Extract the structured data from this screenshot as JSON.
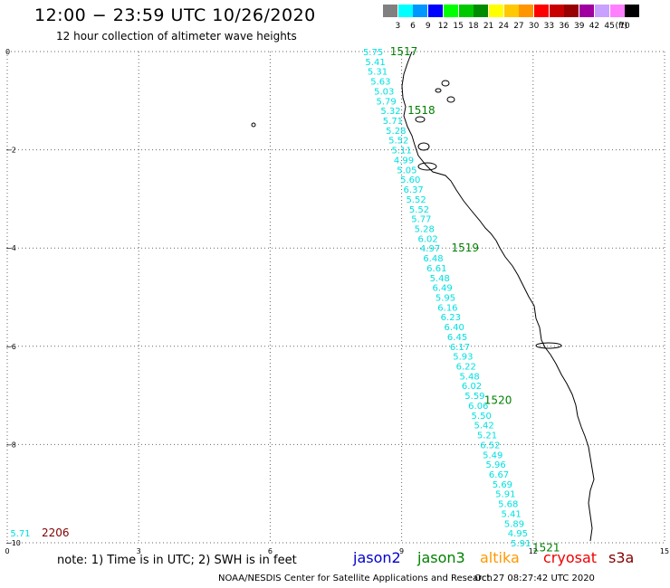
{
  "header": {
    "title": "12:00 − 23:59 UTC 10/26/2020",
    "subtitle": "12 hour collection of altimeter wave heights"
  },
  "color_scale": {
    "unit": "(ft)",
    "bins": [
      {
        "label": "3",
        "color": "#808080"
      },
      {
        "label": "6",
        "color": "#00ffff"
      },
      {
        "label": "9",
        "color": "#0096ff"
      },
      {
        "label": "12",
        "color": "#0000ff"
      },
      {
        "label": "15",
        "color": "#00ff00"
      },
      {
        "label": "18",
        "color": "#00c800"
      },
      {
        "label": "21",
        "color": "#008c00"
      },
      {
        "label": "24",
        "color": "#ffff00"
      },
      {
        "label": "27",
        "color": "#ffc800"
      },
      {
        "label": "30",
        "color": "#ff9600"
      },
      {
        "label": "33",
        "color": "#ff0000"
      },
      {
        "label": "36",
        "color": "#c80000"
      },
      {
        "label": "39",
        "color": "#960000"
      },
      {
        "label": "42",
        "color": "#a000a0"
      },
      {
        "label": "45",
        "color": "#c8a0ff"
      },
      {
        "label": "70",
        "color": "#ff80ff"
      },
      {
        "label": "",
        "color": "#000000"
      }
    ]
  },
  "map": {
    "x_ticks": [
      "0",
      "3",
      "6",
      "9",
      "12",
      "15"
    ],
    "y_ticks": [
      "0",
      "−2",
      "−4",
      "−6",
      "−8",
      "−10"
    ],
    "x_range": [
      0,
      15
    ],
    "y_range": [
      -10,
      0
    ],
    "grid": true,
    "track_color": "#00e0e0",
    "time_color": "#008000",
    "track_points": [
      {
        "x": 8.35,
        "y": 0.0,
        "v": "5.75"
      },
      {
        "x": 8.4,
        "y": -0.2,
        "v": "5.41"
      },
      {
        "x": 8.45,
        "y": -0.4,
        "v": "5.31"
      },
      {
        "x": 8.52,
        "y": -0.6,
        "v": "5.63"
      },
      {
        "x": 8.6,
        "y": -0.8,
        "v": "5.03"
      },
      {
        "x": 8.65,
        "y": -1.0,
        "v": "5.79"
      },
      {
        "x": 8.75,
        "y": -1.2,
        "v": "5.32"
      },
      {
        "x": 8.8,
        "y": -1.4,
        "v": "5.71"
      },
      {
        "x": 8.87,
        "y": -1.6,
        "v": "5.28"
      },
      {
        "x": 8.93,
        "y": -1.8,
        "v": "5.52"
      },
      {
        "x": 9.0,
        "y": -2.0,
        "v": "5.11"
      },
      {
        "x": 9.05,
        "y": -2.2,
        "v": "4.99"
      },
      {
        "x": 9.12,
        "y": -2.4,
        "v": "5.05"
      },
      {
        "x": 9.2,
        "y": -2.6,
        "v": "5.60"
      },
      {
        "x": 9.27,
        "y": -2.8,
        "v": "6.37"
      },
      {
        "x": 9.33,
        "y": -3.0,
        "v": "5.52"
      },
      {
        "x": 9.4,
        "y": -3.2,
        "v": "5.52"
      },
      {
        "x": 9.45,
        "y": -3.4,
        "v": "5.77"
      },
      {
        "x": 9.52,
        "y": -3.6,
        "v": "5.28"
      },
      {
        "x": 9.6,
        "y": -3.8,
        "v": "6.02"
      },
      {
        "x": 9.65,
        "y": -4.0,
        "v": "4.97"
      },
      {
        "x": 9.72,
        "y": -4.2,
        "v": "6.48"
      },
      {
        "x": 9.8,
        "y": -4.4,
        "v": "6.61"
      },
      {
        "x": 9.87,
        "y": -4.6,
        "v": "5.48"
      },
      {
        "x": 9.93,
        "y": -4.8,
        "v": "6.49"
      },
      {
        "x": 10.0,
        "y": -5.0,
        "v": "5.95"
      },
      {
        "x": 10.05,
        "y": -5.2,
        "v": "6.16"
      },
      {
        "x": 10.12,
        "y": -5.4,
        "v": "6.23"
      },
      {
        "x": 10.2,
        "y": -5.6,
        "v": "6.40"
      },
      {
        "x": 10.27,
        "y": -5.8,
        "v": "6.45"
      },
      {
        "x": 10.33,
        "y": -6.0,
        "v": "6.17"
      },
      {
        "x": 10.4,
        "y": -6.2,
        "v": "5.93"
      },
      {
        "x": 10.47,
        "y": -6.4,
        "v": "6.22"
      },
      {
        "x": 10.55,
        "y": -6.6,
        "v": "5.48"
      },
      {
        "x": 10.6,
        "y": -6.8,
        "v": "6.02"
      },
      {
        "x": 10.67,
        "y": -7.0,
        "v": "5.59"
      },
      {
        "x": 10.75,
        "y": -7.2,
        "v": "6.06"
      },
      {
        "x": 10.82,
        "y": -7.4,
        "v": "5.50"
      },
      {
        "x": 10.88,
        "y": -7.6,
        "v": "5.42"
      },
      {
        "x": 10.95,
        "y": -7.8,
        "v": "5.21"
      },
      {
        "x": 11.02,
        "y": -8.0,
        "v": "6.52"
      },
      {
        "x": 11.08,
        "y": -8.2,
        "v": "5.49"
      },
      {
        "x": 11.15,
        "y": -8.4,
        "v": "5.96"
      },
      {
        "x": 11.22,
        "y": -8.6,
        "v": "6.67"
      },
      {
        "x": 11.3,
        "y": -8.8,
        "v": "5.69"
      },
      {
        "x": 11.37,
        "y": -9.0,
        "v": "5.91"
      },
      {
        "x": 11.43,
        "y": -9.2,
        "v": "5.68"
      },
      {
        "x": 11.5,
        "y": -9.4,
        "v": "5.41"
      },
      {
        "x": 11.57,
        "y": -9.6,
        "v": "5.89"
      },
      {
        "x": 11.65,
        "y": -9.8,
        "v": "4.95"
      },
      {
        "x": 11.72,
        "y": -10.0,
        "v": "5.91"
      },
      {
        "x": 0.3,
        "y": -9.8,
        "v": "5.71"
      }
    ],
    "time_labels": [
      {
        "x": 9.05,
        "y": 0.0,
        "t": "1517"
      },
      {
        "x": 9.45,
        "y": -1.2,
        "t": "1518"
      },
      {
        "x": 10.45,
        "y": -4.0,
        "t": "1519"
      },
      {
        "x": 11.2,
        "y": -7.1,
        "t": "1520"
      },
      {
        "x": 12.3,
        "y": -10.1,
        "t": "1521"
      },
      {
        "x": 1.1,
        "y": -9.8,
        "t": "2206",
        "color": "#800000"
      }
    ]
  },
  "footer": {
    "note": "note: 1) Time is in UTC; 2) SWH is in feet",
    "satellites": [
      {
        "name": "jason2",
        "color": "#0000cc"
      },
      {
        "name": "jason3",
        "color": "#008000"
      },
      {
        "name": "altika",
        "color": "#ff9900"
      },
      {
        "name": "cryosat",
        "color": "#ee0000"
      },
      {
        "name": "s3a",
        "color": "#800000"
      }
    ],
    "credit": "NOAA/NESDIS Center for Satellite Applications and Research",
    "generated": "Oct 27 08:27:42 UTC 2020"
  }
}
